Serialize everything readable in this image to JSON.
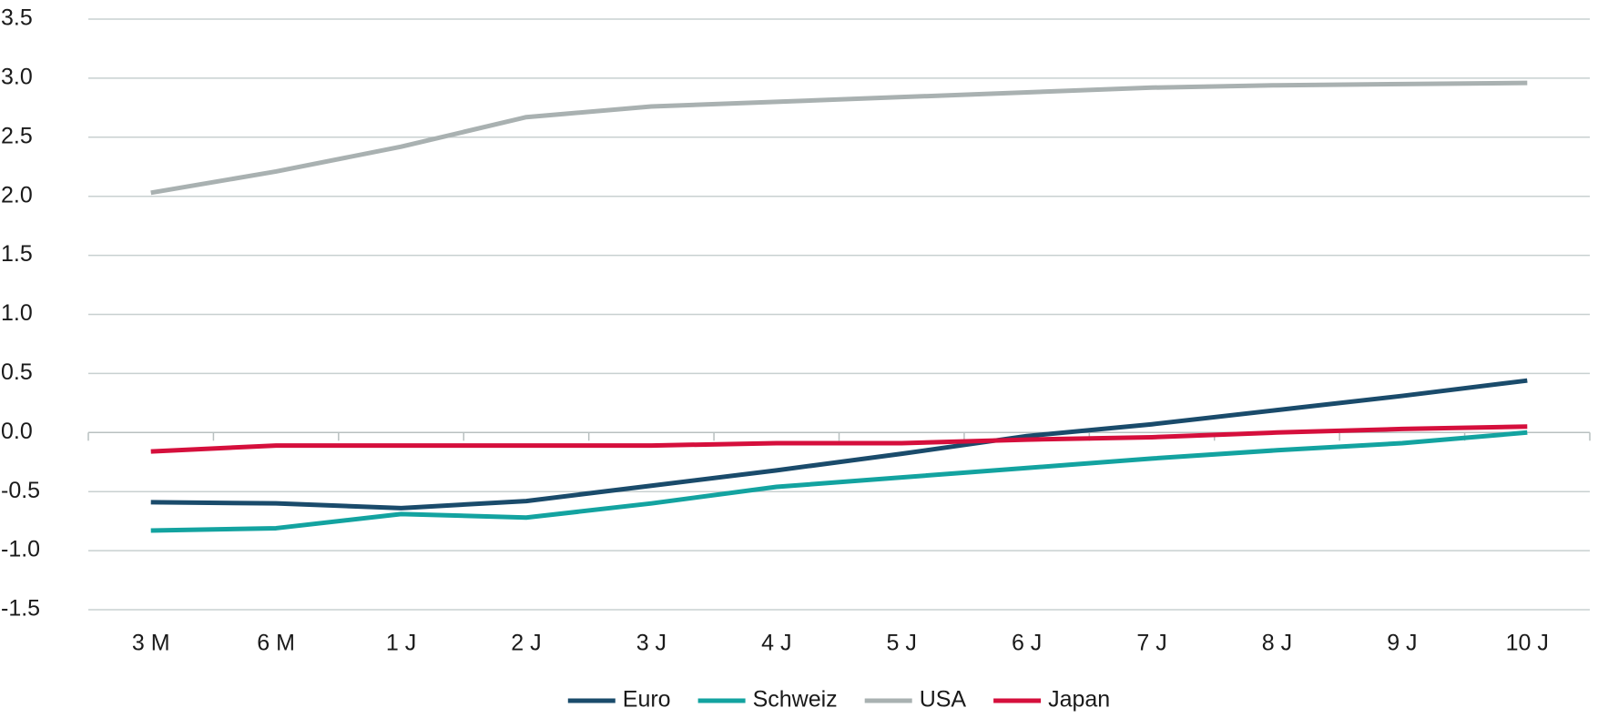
{
  "chart_data": {
    "type": "line",
    "categories": [
      "3 M",
      "6 M",
      "1 J",
      "2 J",
      "3 J",
      "4 J",
      "5 J",
      "6 J",
      "7 J",
      "8 J",
      "9 J",
      "10 J"
    ],
    "series": [
      {
        "name": "Euro",
        "color": "#1a4b6b",
        "values": [
          -0.59,
          -0.6,
          -0.64,
          -0.58,
          -0.45,
          -0.32,
          -0.18,
          -0.03,
          0.07,
          0.19,
          0.31,
          0.44
        ]
      },
      {
        "name": "Schweiz",
        "color": "#13a3a0",
        "values": [
          -0.83,
          -0.81,
          -0.69,
          -0.72,
          -0.6,
          -0.46,
          -0.38,
          -0.3,
          -0.22,
          -0.15,
          -0.09,
          0.0
        ]
      },
      {
        "name": "USA",
        "color": "#a9b1b1",
        "values": [
          2.03,
          2.21,
          2.42,
          2.67,
          2.76,
          2.8,
          2.84,
          2.88,
          2.92,
          2.94,
          2.95,
          2.96
        ]
      },
      {
        "name": "Japan",
        "color": "#d50f3c",
        "values": [
          -0.16,
          -0.11,
          -0.11,
          -0.11,
          -0.11,
          -0.09,
          -0.09,
          -0.06,
          -0.04,
          0.0,
          0.03,
          0.05
        ]
      }
    ],
    "ylim": [
      -1.5,
      3.5
    ],
    "yticks": [
      -1.5,
      {
        "value": -1,
        "label": "-1.0"
      },
      -0.5,
      {
        "value": 0,
        "label": "0.0"
      },
      0.5,
      {
        "value": 1,
        "label": "1.0"
      },
      1.5,
      {
        "value": 2,
        "label": "2.0"
      },
      2.5,
      {
        "value": 3,
        "label": "3.0"
      },
      3.5
    ],
    "grid": true,
    "legend": "bottom"
  }
}
